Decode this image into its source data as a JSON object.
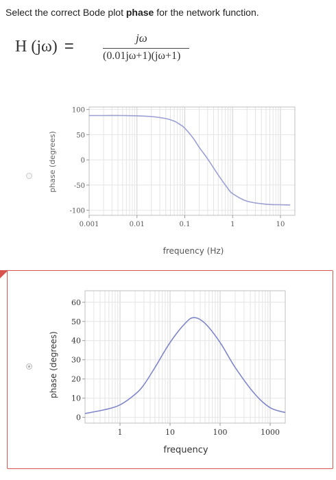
{
  "question": {
    "prefix": "Select the correct Bode plot ",
    "bold": "phase",
    "suffix": " for the network function."
  },
  "formula": {
    "lhs": "H (jω)",
    "equals": "=",
    "numerator": "jω",
    "denominator": "(0.01jω+1)(jω+1)"
  },
  "option_a": {
    "selected": false,
    "chart_data": {
      "type": "line",
      "xlabel": "frequency (Hz)",
      "ylabel": "phase (degrees)",
      "x_scale": "log",
      "xlim": [
        0.001,
        20
      ],
      "ylim": [
        -110,
        105
      ],
      "x_ticks": [
        "0.001",
        "0.01",
        "0.1",
        "1",
        "10"
      ],
      "y_ticks": [
        "100",
        "50",
        "0",
        "-50",
        "-100"
      ],
      "series": [
        {
          "x": [
            0.001,
            0.002,
            0.005,
            0.01,
            0.02,
            0.04,
            0.06,
            0.08,
            0.1,
            0.15,
            0.2,
            0.3,
            0.5,
            0.8,
            1,
            2,
            5,
            10,
            16
          ],
          "values": [
            88,
            88,
            88,
            87.5,
            86,
            82,
            77,
            70,
            63,
            43,
            25,
            2,
            -30,
            -57,
            -67,
            -82,
            -88,
            -89,
            -89.5
          ]
        }
      ],
      "grid": true,
      "line_color": "#9b9fd3"
    }
  },
  "option_b": {
    "selected": true,
    "chart_data": {
      "type": "line",
      "xlabel": "frequency",
      "ylabel": "phase (degrees)",
      "x_scale": "log",
      "xlim": [
        0.2,
        2000
      ],
      "ylim": [
        -3,
        66
      ],
      "x_ticks": [
        "1",
        "10",
        "100",
        "1000"
      ],
      "y_ticks": [
        "60",
        "50",
        "40",
        "30",
        "20",
        "10",
        "0"
      ],
      "series": [
        {
          "x": [
            0.2,
            0.5,
            1,
            2,
            3,
            5,
            10,
            20,
            30,
            50,
            100,
            200,
            500,
            1000,
            2000
          ],
          "values": [
            2,
            4,
            6.5,
            12,
            17,
            26,
            39,
            49,
            52,
            49,
            39,
            26,
            12,
            5,
            2.5
          ]
        }
      ],
      "grid": true,
      "line_color": "#7f86c9"
    }
  }
}
